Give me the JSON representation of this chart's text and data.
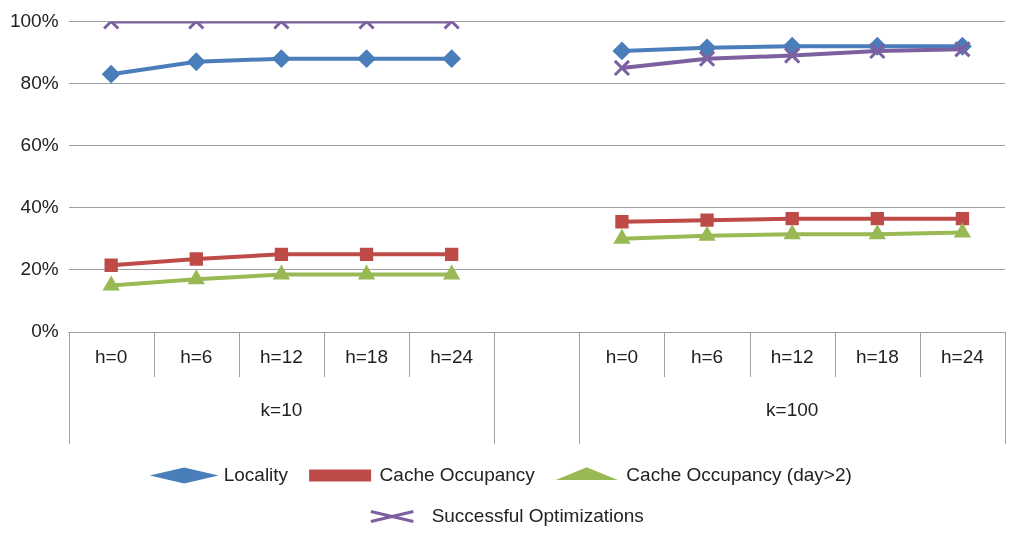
{
  "chart_data": {
    "type": "line",
    "categories": [
      "h=0",
      "h=6",
      "h=12",
      "h=18",
      "h=24",
      null,
      "h=0",
      "h=6",
      "h=12",
      "h=18",
      "h=24"
    ],
    "series": [
      {
        "name": "Locality",
        "color": "#4a7ebb",
        "marker": "diamond",
        "values": [
          83,
          87,
          88,
          88,
          88,
          null,
          90.5,
          91.5,
          92,
          92,
          92
        ]
      },
      {
        "name": "Cache Occupancy",
        "color": "#be4b48",
        "marker": "square",
        "values": [
          21.5,
          23.5,
          25,
          25,
          25,
          null,
          35.5,
          36,
          36.5,
          36.5,
          36.5
        ]
      },
      {
        "name": "Cache Occupancy (day>2)",
        "color": "#98b954",
        "marker": "triangle",
        "values": [
          15,
          17,
          18.5,
          18.5,
          18.5,
          null,
          30,
          31,
          31.5,
          31.5,
          32
        ]
      },
      {
        "name": "Successful Optimizations",
        "color": "#7d60a0",
        "marker": "cross",
        "values": [
          100,
          100,
          100,
          100,
          100,
          null,
          85,
          88,
          89,
          90.5,
          91
        ]
      }
    ],
    "annotations": [
      "k=10",
      "k=100"
    ],
    "ylim": [
      0,
      100
    ],
    "yticks": [
      {
        "value": 0,
        "label": "0%"
      },
      {
        "value": 20,
        "label": "20%"
      },
      {
        "value": 40,
        "label": "40%"
      },
      {
        "value": 60,
        "label": "60%"
      },
      {
        "value": 80,
        "label": "80%"
      },
      {
        "value": 100,
        "label": "100%"
      }
    ],
    "grid": "y",
    "legend": "bottom",
    "line_style": "solid"
  }
}
